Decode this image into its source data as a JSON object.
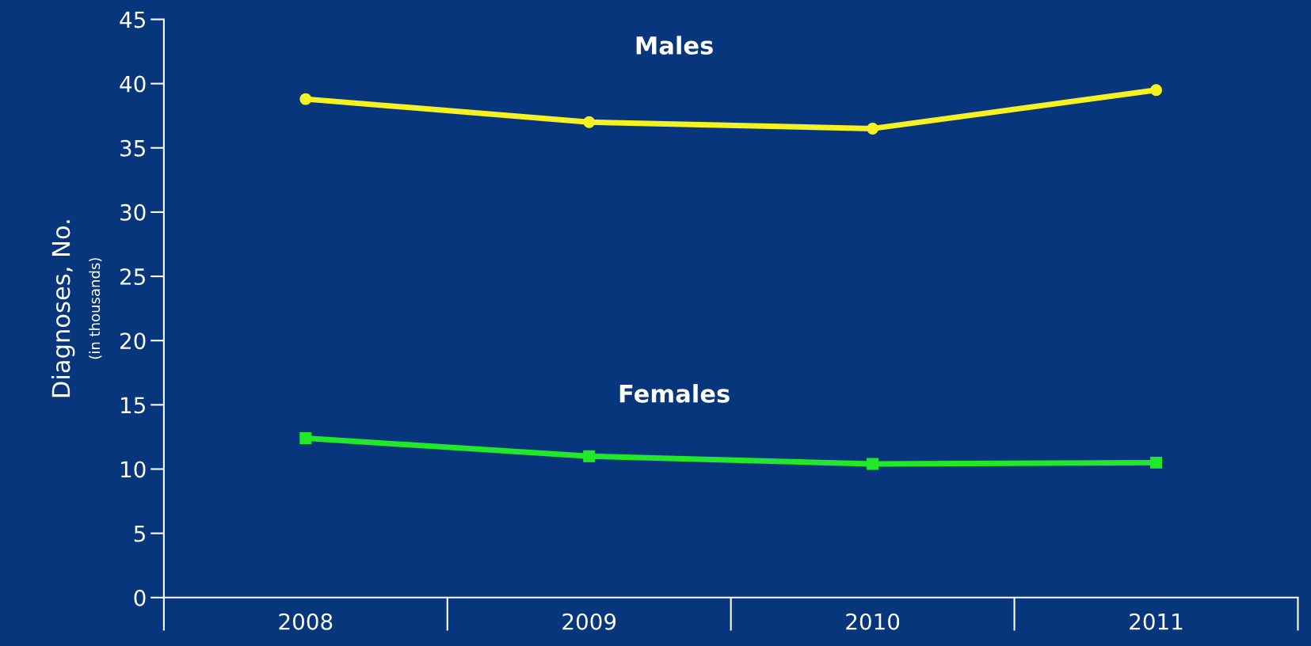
{
  "chart_data": {
    "type": "line",
    "ylabel": "Diagnoses, No.",
    "annotations": [
      "(in thousands)"
    ],
    "categories": [
      "2008",
      "2009",
      "2010",
      "2011"
    ],
    "series": [
      {
        "name": "Males",
        "color": "#f5f222",
        "marker": "circle",
        "values": [
          38.8,
          37.0,
          36.5,
          39.5
        ]
      },
      {
        "name": "Females",
        "color": "#22e82a",
        "marker": "square",
        "values": [
          12.4,
          11.0,
          10.4,
          10.5
        ]
      }
    ],
    "ylim": [
      0,
      45
    ],
    "yticks": [
      0,
      5,
      10,
      15,
      20,
      25,
      30,
      35,
      40,
      45
    ],
    "grid": false,
    "legend": false
  }
}
